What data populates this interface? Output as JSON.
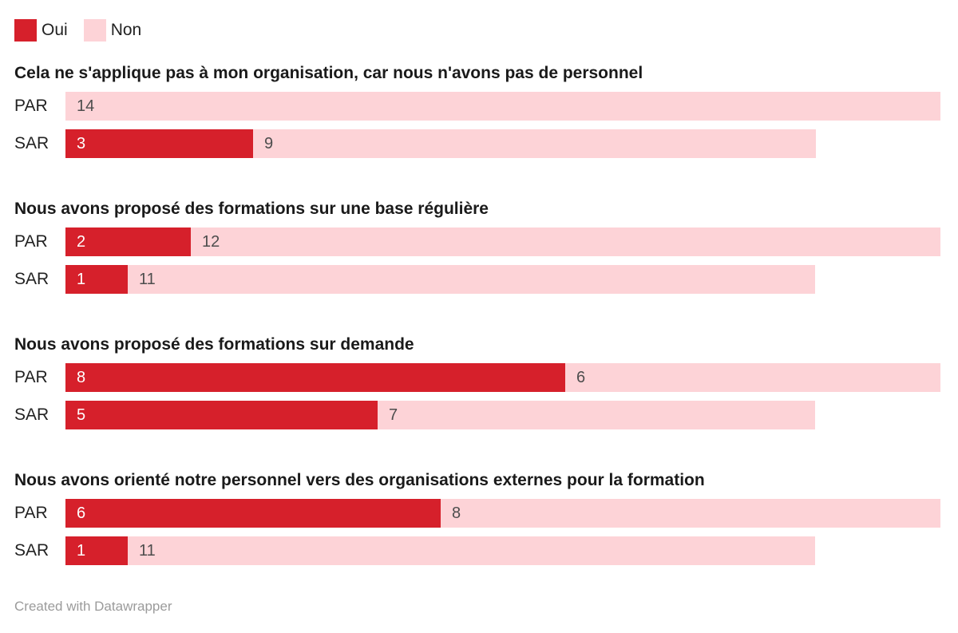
{
  "chart_data": {
    "type": "bar",
    "subtype": "stacked-horizontal-grouped",
    "legend": [
      {
        "label": "Oui",
        "color": "#d6202b"
      },
      {
        "label": "Non",
        "color": "#fdd3d7"
      }
    ],
    "legend_position": "top-left",
    "grid": false,
    "axis_visible": false,
    "max_total": 14,
    "value_label_color_on_oui": "#ffffff",
    "value_label_color_on_non": "#4d4d4d",
    "groups": [
      {
        "title": "Cela ne s'applique pas à mon organisation, car nous n'avons pas de personnel",
        "rows": [
          {
            "label": "PAR",
            "oui": 0,
            "non": 14
          },
          {
            "label": "SAR",
            "oui": 3,
            "non": 9
          }
        ]
      },
      {
        "title": "Nous avons proposé des formations sur une base régulière",
        "rows": [
          {
            "label": "PAR",
            "oui": 2,
            "non": 12
          },
          {
            "label": "SAR",
            "oui": 1,
            "non": 11
          }
        ]
      },
      {
        "title": "Nous avons proposé des formations sur demande",
        "rows": [
          {
            "label": "PAR",
            "oui": 8,
            "non": 6
          },
          {
            "label": "SAR",
            "oui": 5,
            "non": 7
          }
        ]
      },
      {
        "title": "Nous avons orienté notre personnel vers des organisations externes pour la formation",
        "rows": [
          {
            "label": "PAR",
            "oui": 6,
            "non": 8
          },
          {
            "label": "SAR",
            "oui": 1,
            "non": 11
          }
        ]
      }
    ],
    "footer": "Created with Datawrapper"
  }
}
